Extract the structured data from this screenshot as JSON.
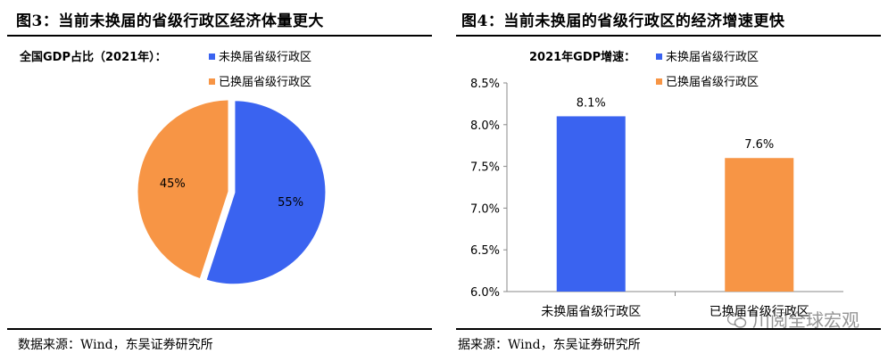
{
  "figures": [
    {
      "title": "图3：当前未换届的省级行政区经济体量更大",
      "source": "数据来源：Wind，东吴证券研究所",
      "chart_data": {
        "type": "pie",
        "legend_title": "全国GDP占比（2021年）：",
        "legend_position": "top",
        "slices": [
          {
            "name": "未换届省级行政区",
            "value": 55,
            "label": "55%",
            "color": "#3a63f0"
          },
          {
            "name": "已换届省级行政区",
            "value": 45,
            "label": "45%",
            "color": "#f79545"
          }
        ]
      }
    },
    {
      "title": "图4：当前未换届的省级行政区的经济增速更快",
      "source": "据来源：Wind，东吴证券研究所",
      "chart_data": {
        "type": "bar",
        "legend_title": "2021年GDP增速：",
        "legend_position": "top",
        "categories": [
          "未换届省级行政区",
          "已换届省级行政区"
        ],
        "values": [
          8.1,
          7.6
        ],
        "data_labels": [
          "8.1%",
          "7.6%"
        ],
        "colors": [
          "#3a63f0",
          "#f79545"
        ],
        "legend": [
          {
            "name": "未换届省级行政区",
            "color": "#3a63f0"
          },
          {
            "name": "已换届省级行政区",
            "color": "#f79545"
          }
        ],
        "ylim": [
          6.0,
          8.5
        ],
        "yticks": [
          "6.0%",
          "6.5%",
          "7.0%",
          "7.5%",
          "8.0%",
          "8.5%"
        ],
        "ytick_values": [
          6.0,
          6.5,
          7.0,
          7.5,
          8.0,
          8.5
        ],
        "grid": false
      }
    }
  ],
  "watermark": "川阅全球宏观",
  "icons": {
    "watermark_icon": "wechat-icon"
  }
}
